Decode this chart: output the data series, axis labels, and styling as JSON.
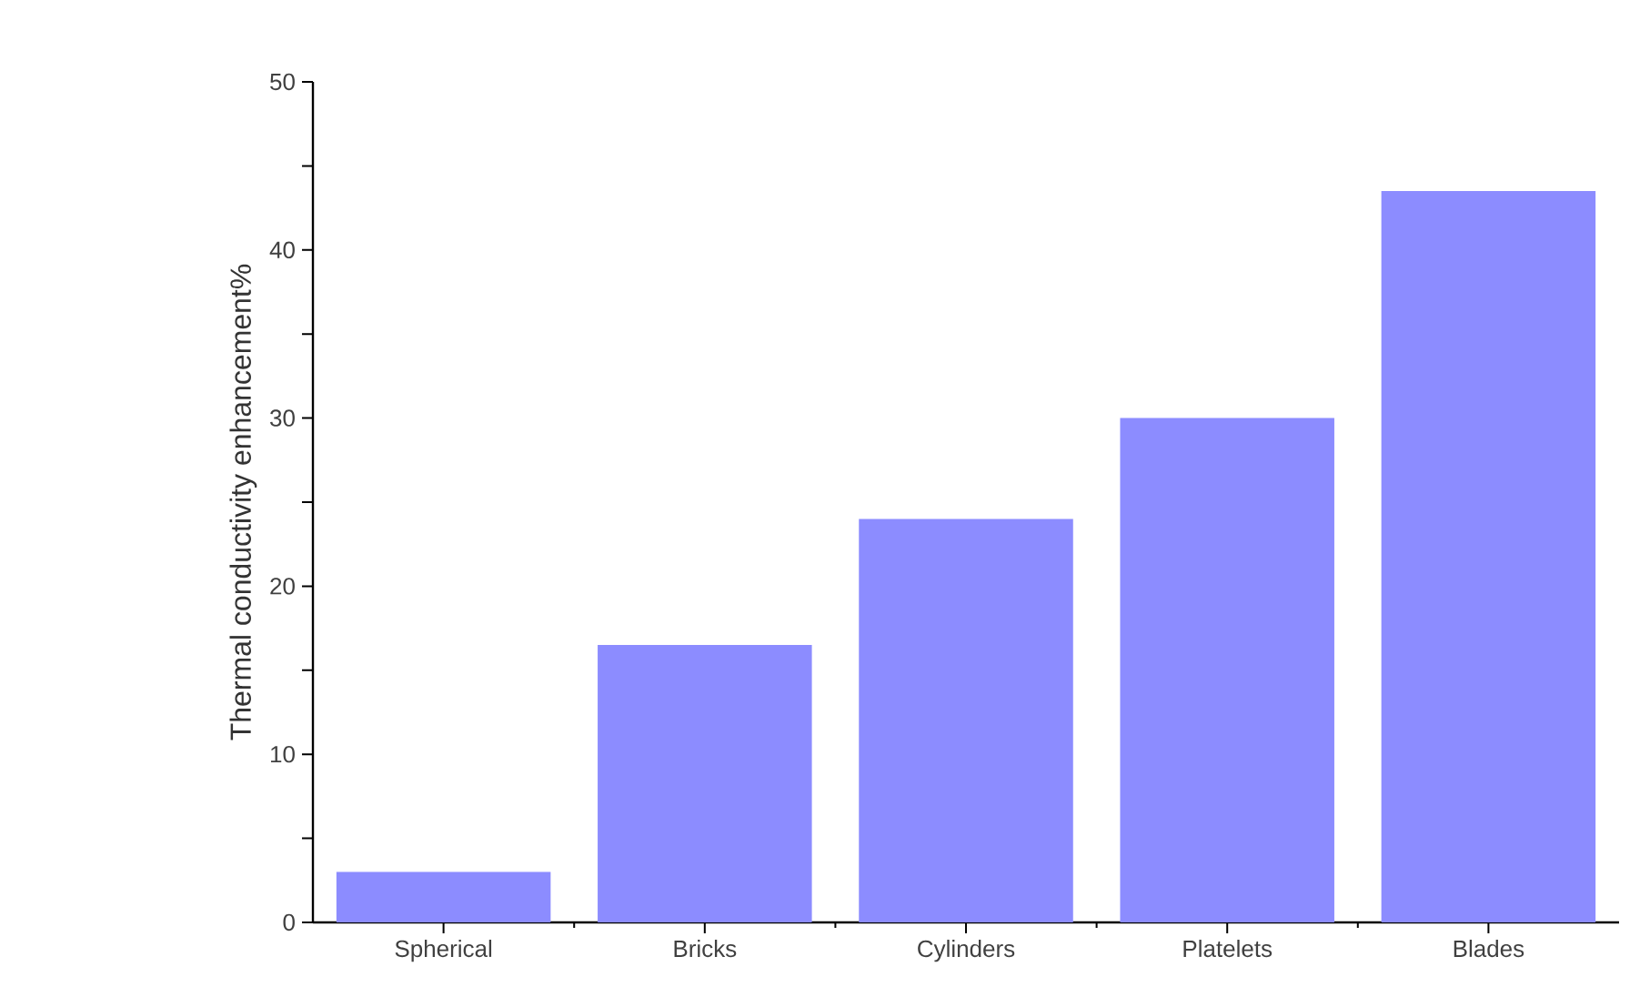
{
  "chart_data": {
    "type": "bar",
    "ylabel": "Thermal conductivity enhancement%",
    "categories": [
      "Spherical",
      "Bricks",
      "Cylinders",
      "Platelets",
      "Blades"
    ],
    "values": [
      3,
      16.5,
      24,
      30,
      43.5
    ],
    "color": "#8c8cff",
    "ylim": [
      0,
      50
    ],
    "yticks": [
      0,
      {
        "value": 5,
        "label": null
      },
      10,
      {
        "value": 15,
        "label": null
      },
      20,
      {
        "value": 25,
        "label": null
      },
      30,
      {
        "value": 35,
        "label": null
      },
      40,
      {
        "value": 45,
        "label": null
      },
      50
    ]
  }
}
